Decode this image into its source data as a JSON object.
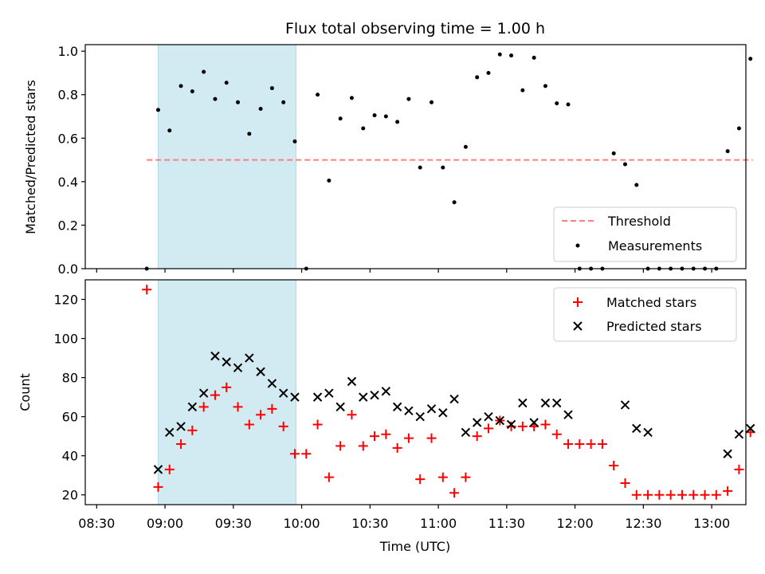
{
  "chart_data": [
    {
      "type": "scatter",
      "title": "Flux total observing time = 1.00 h",
      "ylabel": "Matched/Predicted stars",
      "xlabel": "",
      "xlim_minutes_utc": [
        505,
        795
      ],
      "ylim": [
        0.0,
        1.03
      ],
      "yticks": [
        0.0,
        0.2,
        0.4,
        0.6,
        0.8,
        1.0
      ],
      "ytick_labels": [
        "0.0",
        "0.2",
        "0.4",
        "0.6",
        "0.8",
        "1.0"
      ],
      "shaded_interval_minutes_utc": [
        537,
        597.5
      ],
      "shaded_color": "#add8e6",
      "threshold": {
        "label": "Threshold",
        "value": 0.5,
        "x_range_minutes_utc": [
          532,
          798
        ],
        "color": "#ff7f7f"
      },
      "series": [
        {
          "name": "Measurements",
          "marker": "dot",
          "color": "#000000",
          "x_minutes_utc": [
            532,
            537,
            542,
            547,
            552,
            557,
            562,
            567,
            572,
            577,
            582,
            587,
            592,
            597,
            602,
            607,
            612,
            617,
            622,
            627,
            632,
            637,
            642,
            647,
            652,
            657,
            662,
            667,
            672,
            677,
            682,
            687,
            692,
            697,
            702,
            707,
            712,
            717,
            722,
            727,
            732,
            737,
            742,
            747,
            752,
            757,
            762,
            767,
            772,
            777,
            782,
            787,
            792,
            797
          ],
          "values": [
            0.0,
            0.73,
            0.635,
            0.84,
            0.815,
            0.905,
            0.78,
            0.855,
            0.765,
            0.62,
            0.735,
            0.83,
            0.765,
            0.585,
            0.0,
            0.8,
            0.405,
            0.69,
            0.785,
            0.645,
            0.705,
            0.7,
            0.675,
            0.78,
            0.465,
            0.765,
            0.465,
            0.305,
            0.56,
            0.88,
            0.9,
            0.985,
            0.98,
            0.82,
            0.97,
            0.84,
            0.76,
            0.755,
            0.0,
            0.0,
            0.0,
            0.53,
            0.48,
            0.385,
            0.0,
            0.0,
            0.0,
            0.0,
            0.0,
            0.0,
            0.0,
            0.54,
            0.645,
            0.965
          ]
        }
      ],
      "legend": [
        "Threshold",
        "Measurements"
      ],
      "legend_position": "lower-right"
    },
    {
      "type": "scatter",
      "title": "",
      "ylabel": "Count",
      "xlabel": "Time (UTC)",
      "xlim_minutes_utc": [
        505,
        795
      ],
      "ylim": [
        15,
        130
      ],
      "yticks": [
        20,
        40,
        60,
        80,
        100,
        120
      ],
      "ytick_labels": [
        "20",
        "40",
        "60",
        "80",
        "100",
        "120"
      ],
      "xticks_minutes_utc": [
        510,
        540,
        570,
        600,
        630,
        660,
        690,
        720,
        750,
        780
      ],
      "xtick_labels": [
        "08:30",
        "09:00",
        "09:30",
        "10:00",
        "10:30",
        "11:00",
        "11:30",
        "12:00",
        "12:30",
        "13:00"
      ],
      "shaded_interval_minutes_utc": [
        537,
        597.5
      ],
      "shaded_color": "#add8e6",
      "series": [
        {
          "name": "Matched stars",
          "marker": "plus",
          "color": "#ff0000",
          "x_minutes_utc": [
            532,
            537,
            542,
            547,
            552,
            557,
            562,
            567,
            572,
            577,
            582,
            587,
            592,
            597,
            602,
            607,
            612,
            617,
            622,
            627,
            632,
            637,
            642,
            647,
            652,
            657,
            662,
            667,
            672,
            677,
            682,
            687,
            692,
            697,
            702,
            707,
            712,
            717,
            722,
            727,
            732,
            737,
            742,
            747,
            752,
            757,
            762,
            767,
            772,
            777,
            782,
            787,
            792,
            797
          ],
          "values": [
            125,
            24,
            33,
            46,
            53,
            65,
            71,
            75,
            65,
            56,
            61,
            64,
            55,
            41,
            41,
            56,
            29,
            45,
            61,
            45,
            50,
            51,
            44,
            49,
            28,
            49,
            29,
            21,
            29,
            50,
            54,
            58,
            55,
            55,
            55,
            56,
            51,
            46,
            46,
            46,
            46,
            35,
            26,
            20,
            20,
            20,
            20,
            20,
            20,
            20,
            20,
            22,
            33,
            52
          ]
        },
        {
          "name": "Predicted stars",
          "marker": "x",
          "color": "#000000",
          "x_minutes_utc": [
            537,
            542,
            547,
            552,
            557,
            562,
            567,
            572,
            577,
            582,
            587,
            592,
            597,
            607,
            612,
            617,
            622,
            627,
            632,
            637,
            642,
            647,
            652,
            657,
            662,
            667,
            672,
            677,
            682,
            687,
            692,
            697,
            702,
            707,
            712,
            717,
            742,
            747,
            752,
            787,
            792,
            797
          ],
          "values": [
            33,
            52,
            55,
            65,
            72,
            91,
            88,
            85,
            90,
            83,
            77,
            72,
            70,
            70,
            72,
            65,
            78,
            70,
            71,
            73,
            65,
            63,
            60,
            64,
            62,
            69,
            52,
            57,
            60,
            58,
            56,
            67,
            57,
            67,
            67,
            61,
            66,
            54,
            52,
            41,
            51,
            54
          ]
        }
      ],
      "legend": [
        "Matched stars",
        "Predicted stars"
      ],
      "legend_position": "upper-right"
    }
  ]
}
